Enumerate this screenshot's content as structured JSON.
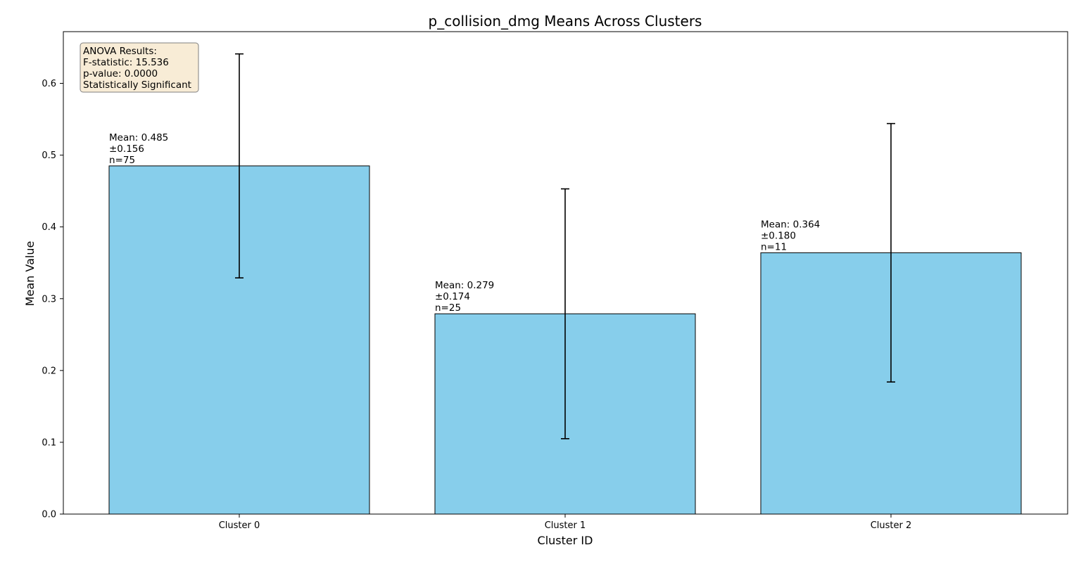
{
  "chart_data": {
    "type": "bar",
    "title": "p_collision_dmg Means Across Clusters",
    "xlabel": "Cluster ID",
    "ylabel": "Mean Value",
    "categories": [
      "Cluster 0",
      "Cluster 1",
      "Cluster 2"
    ],
    "values": [
      0.485,
      0.279,
      0.364
    ],
    "errors": [
      0.156,
      0.174,
      0.18
    ],
    "counts": [
      75,
      25,
      11
    ],
    "bar_labels": [
      [
        "Mean: 0.485",
        "±0.156",
        "n=75"
      ],
      [
        "Mean: 0.279",
        "±0.174",
        "n=25"
      ],
      [
        "Mean: 0.364",
        "±0.180",
        "n=11"
      ]
    ],
    "ylim": [
      0,
      0.672
    ],
    "yticks": [
      0.0,
      0.1,
      0.2,
      0.3,
      0.4,
      0.5,
      0.6
    ],
    "ytick_labels": [
      "0.0",
      "0.1",
      "0.2",
      "0.3",
      "0.4",
      "0.5",
      "0.6"
    ],
    "grid": false,
    "bar_color": "#87CEEB",
    "bar_edge_color": "#000000",
    "error_color": "#000000",
    "annotation": {
      "placement": "top-left",
      "background": "#F8ECD6",
      "border": "#7f7f7f",
      "lines": [
        "ANOVA Results:",
        "F-statistic: 15.536",
        "p-value: 0.0000",
        "Statistically Significant"
      ]
    }
  }
}
